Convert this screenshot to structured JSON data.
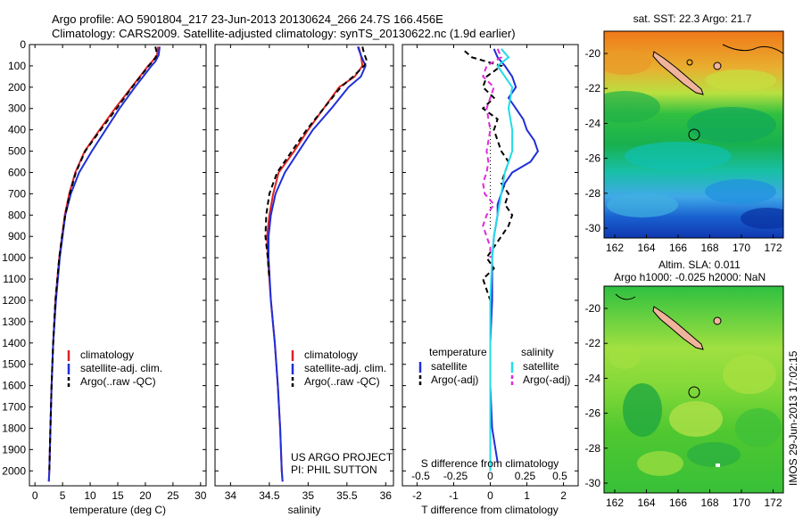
{
  "header": {
    "line1": "Argo profile: AO 5901804_217 23-Jun-2013 20130624_266 24.7S 166.456E",
    "line2": "Climatology: CARS2009. Satellite-adjusted climatology: synTS_20130622.nc (1.9d earlier)"
  },
  "colors": {
    "climatology": "#dd2222",
    "satellite": "#1f2fd8",
    "argo": "#000000",
    "sal_satellite": "#22dde8",
    "sal_argo": "#e02ad8",
    "land": "#f0b49c"
  },
  "depth_ticks": [
    "0",
    "100",
    "200",
    "300",
    "400",
    "500",
    "600",
    "700",
    "800",
    "900",
    "1000",
    "1100",
    "1200",
    "1300",
    "1400",
    "1500",
    "1600",
    "1700",
    "1800",
    "1900",
    "2000"
  ],
  "chart_data": [
    {
      "type": "line",
      "name": "temperature-profile",
      "xlabel": "temperature (deg C)",
      "xlim": [
        -1,
        31
      ],
      "ylim": [
        2070,
        0
      ],
      "xticks": [
        "0",
        "5",
        "10",
        "15",
        "20",
        "25",
        "30"
      ],
      "xtick_values": [
        0,
        5,
        10,
        15,
        20,
        25,
        30
      ],
      "legend": [
        "climatology",
        "satellite-adj. clim.",
        "Argo(..raw -QC)"
      ],
      "series": [
        {
          "name": "climatology",
          "color_key": "climatology",
          "dash": "",
          "y": [
            10,
            50,
            80,
            100,
            150,
            200,
            300,
            400,
            500,
            600,
            700,
            800,
            900,
            1000,
            1200,
            1400,
            1600,
            1800,
            2000,
            2050
          ],
          "x": [
            22.3,
            22.1,
            21.2,
            20.5,
            19.0,
            17.5,
            14.5,
            11.7,
            9.0,
            7.3,
            6.2,
            5.4,
            4.9,
            4.4,
            3.7,
            3.3,
            3.0,
            2.8,
            2.6,
            2.5
          ]
        },
        {
          "name": "satellite-adj. clim.",
          "color_key": "satellite",
          "dash": "",
          "y": [
            10,
            50,
            80,
            100,
            150,
            200,
            300,
            400,
            500,
            600,
            700,
            800,
            900,
            1000,
            1200,
            1400,
            1600,
            1800,
            2000,
            2050
          ],
          "x": [
            22.6,
            22.4,
            21.8,
            21.1,
            19.6,
            18.1,
            15.3,
            12.8,
            10.3,
            8.0,
            6.5,
            5.5,
            5.0,
            4.5,
            3.8,
            3.3,
            3.0,
            2.8,
            2.6,
            2.5
          ]
        },
        {
          "name": "Argo(..raw -QC)",
          "color_key": "argo",
          "dash": "6,4",
          "y": [
            10,
            30,
            60,
            80,
            100,
            150,
            200,
            300,
            400,
            500,
            600,
            700,
            800,
            900,
            1000,
            1200,
            1400,
            1600,
            1800,
            2000
          ],
          "x": [
            21.8,
            22.0,
            21.9,
            21.3,
            20.6,
            19.1,
            17.6,
            14.8,
            11.9,
            9.1,
            7.4,
            6.3,
            5.5,
            4.9,
            4.4,
            3.7,
            3.3,
            3.0,
            2.8,
            2.6
          ]
        }
      ]
    },
    {
      "type": "line",
      "name": "salinity-profile",
      "xlabel": "salinity",
      "xlim": [
        33.8,
        36.1
      ],
      "ylim": [
        2070,
        0
      ],
      "xticks": [
        "34",
        "34.5",
        "35",
        "35.5",
        "36"
      ],
      "xtick_values": [
        34,
        34.5,
        35,
        35.5,
        36
      ],
      "legend": [
        "climatology",
        "satellite-adj. clim.",
        "Argo(..raw -QC)"
      ],
      "annotation": [
        "US ARGO PROJECT",
        "PI: PHIL SUTTON"
      ],
      "series": [
        {
          "name": "climatology",
          "color_key": "climatology",
          "dash": "",
          "y": [
            10,
            50,
            100,
            150,
            200,
            300,
            400,
            500,
            600,
            700,
            800,
            900,
            1000,
            1200,
            1400,
            1600,
            1800,
            2000,
            2050
          ],
          "x": [
            35.65,
            35.68,
            35.7,
            35.6,
            35.4,
            35.2,
            35.0,
            34.82,
            34.62,
            34.55,
            34.5,
            34.47,
            34.48,
            34.52,
            34.57,
            34.61,
            34.64,
            34.66,
            34.67
          ]
        },
        {
          "name": "satellite-adj. clim.",
          "color_key": "satellite",
          "dash": "",
          "y": [
            10,
            50,
            100,
            150,
            200,
            300,
            400,
            500,
            600,
            700,
            800,
            900,
            1000,
            1200,
            1400,
            1600,
            1800,
            2000,
            2050
          ],
          "x": [
            35.64,
            35.68,
            35.74,
            35.68,
            35.52,
            35.3,
            35.06,
            34.88,
            34.7,
            34.58,
            34.52,
            34.49,
            34.49,
            34.52,
            34.57,
            34.61,
            34.64,
            34.66,
            34.67
          ]
        },
        {
          "name": "Argo(..raw -QC)",
          "color_key": "argo",
          "dash": "6,4",
          "y": [
            10,
            40,
            80,
            100,
            150,
            200,
            300,
            400,
            500,
            600,
            700,
            800,
            900,
            1000,
            1100
          ],
          "x": [
            35.7,
            35.72,
            35.76,
            35.72,
            35.58,
            35.42,
            35.2,
            34.98,
            34.79,
            34.6,
            34.5,
            34.46,
            34.45,
            34.48,
            34.5
          ]
        }
      ]
    },
    {
      "type": "line",
      "name": "difference-profile",
      "xlabel": "T difference from climatology",
      "xlabel_top": "S difference from climatology",
      "xlim": [
        -2.4,
        2.4
      ],
      "ylim": [
        2070,
        0
      ],
      "xticks": [
        "-2",
        "-1",
        "0",
        "1",
        "2"
      ],
      "xtick_values": [
        -2,
        -1,
        0,
        1,
        2
      ],
      "xticks_top": [
        "-0.5",
        "-0.25",
        "0",
        "0.25",
        "0.5"
      ],
      "xtick_top_values": [
        -1.9,
        -0.95,
        0,
        0.95,
        1.9
      ],
      "legend_left_title": "temperature",
      "legend_right_title": "salinity",
      "legend": [
        "satellite",
        "Argo(-adj)",
        "satellite",
        "Argo(-adj)"
      ],
      "series": [
        {
          "name": "satellite",
          "color_key": "satellite",
          "dash": "",
          "y": [
            20,
            60,
            100,
            150,
            200,
            250,
            300,
            350,
            400,
            450,
            500,
            550,
            600,
            650,
            700,
            750,
            800,
            900,
            1000,
            1200,
            1400,
            1600,
            1800,
            1960
          ],
          "x": [
            0.1,
            0.2,
            0.4,
            0.6,
            0.7,
            0.5,
            0.7,
            0.9,
            1.0,
            1.2,
            1.3,
            1.1,
            0.6,
            0.4,
            0.3,
            0.2,
            0.2,
            0.1,
            0.05,
            0.05,
            0,
            0,
            0.05,
            0.2
          ]
        },
        {
          "name": "Argo(-adj)",
          "color_key": "argo",
          "dash": "6,4",
          "y": [
            30,
            60,
            100,
            150,
            200,
            250,
            300,
            350,
            400,
            450,
            500,
            550,
            600,
            650,
            700,
            750,
            800,
            850,
            900,
            950,
            1000,
            1050,
            1100,
            1200,
            1400,
            1600,
            1800,
            2000
          ],
          "x": [
            -0.7,
            -0.5,
            0.3,
            -0.1,
            -0.2,
            0.1,
            -0.2,
            0.2,
            0.1,
            0.2,
            0.3,
            0.5,
            0.4,
            0.3,
            0.5,
            0.4,
            0.6,
            0.5,
            0.3,
            0.1,
            -0.1,
            0.1,
            -0.2,
            0,
            0,
            0,
            0,
            0
          ]
        },
        {
          "name": "sal-satellite",
          "color_key": "sal_satellite",
          "dash": "",
          "y": [
            20,
            60,
            100,
            150,
            200,
            300,
            400,
            500,
            600,
            700,
            800,
            900,
            1000,
            1200,
            1400,
            1600,
            1800,
            2000
          ],
          "x": [
            0.3,
            0.5,
            0.2,
            0.4,
            0.6,
            0.5,
            0.6,
            0.6,
            0.4,
            0.3,
            0.2,
            0.1,
            0.05,
            0,
            0,
            0,
            0,
            0
          ]
        },
        {
          "name": "sal-argo",
          "color_key": "sal_argo",
          "dash": "6,4",
          "y": [
            20,
            60,
            100,
            150,
            200,
            300,
            400,
            500,
            550,
            600,
            650,
            700,
            750,
            800,
            850,
            900,
            950,
            1000
          ],
          "x": [
            0.2,
            0.3,
            -0.1,
            -0.2,
            0.1,
            -0.1,
            0.0,
            -0.1,
            -0.05,
            -0.1,
            -0.2,
            -0.15,
            0.1,
            -0.1,
            -0.2,
            -0.1,
            0.0,
            0.0
          ]
        }
      ]
    }
  ],
  "maps": [
    {
      "name": "sst-map",
      "title": "sat. SST: 22.3 Argo: 21.7",
      "xticks": [
        "162",
        "164",
        "166",
        "168",
        "170",
        "172"
      ],
      "yticks": [
        "-20",
        "-22",
        "-24",
        "-26",
        "-28",
        "-30"
      ],
      "type": "heatmap"
    },
    {
      "name": "sla-map",
      "title_line1": "Altim. SLA: 0.011",
      "title_line2": "Argo h1000: -0.025 h2000: NaN",
      "xticks": [
        "162",
        "164",
        "166",
        "168",
        "170",
        "172"
      ],
      "yticks": [
        "-20",
        "-22",
        "-24",
        "-26",
        "-28",
        "-30"
      ],
      "type": "heatmap"
    }
  ],
  "credit": "IMOS 29-Jun-2013 17:02:15"
}
